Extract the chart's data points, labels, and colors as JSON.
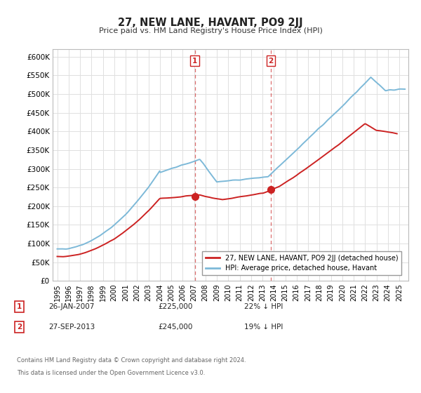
{
  "title": "27, NEW LANE, HAVANT, PO9 2JJ",
  "subtitle": "Price paid vs. HM Land Registry's House Price Index (HPI)",
  "ylim": [
    0,
    620000
  ],
  "yticks": [
    0,
    50000,
    100000,
    150000,
    200000,
    250000,
    300000,
    350000,
    400000,
    450000,
    500000,
    550000,
    600000
  ],
  "xlim_start": 1994.6,
  "xlim_end": 2025.8,
  "legend_line1": "27, NEW LANE, HAVANT, PO9 2JJ (detached house)",
  "legend_line2": "HPI: Average price, detached house, Havant",
  "sale1_label": "1",
  "sale1_date": "26-JAN-2007",
  "sale1_price": "£225,000",
  "sale1_pct": "22% ↓ HPI",
  "sale1_x": 2007.07,
  "sale1_y": 225000,
  "sale2_label": "2",
  "sale2_date": "27-SEP-2013",
  "sale2_price": "£245,000",
  "sale2_pct": "19% ↓ HPI",
  "sale2_x": 2013.75,
  "sale2_y": 245000,
  "footer1": "Contains HM Land Registry data © Crown copyright and database right 2024.",
  "footer2": "This data is licensed under the Open Government Licence v3.0.",
  "hpi_color": "#7db9d8",
  "price_color": "#cc2222",
  "marker_color": "#cc2222",
  "dashed_line_color": "#cc2222",
  "background_color": "#ffffff",
  "grid_color": "#e0e0e0"
}
